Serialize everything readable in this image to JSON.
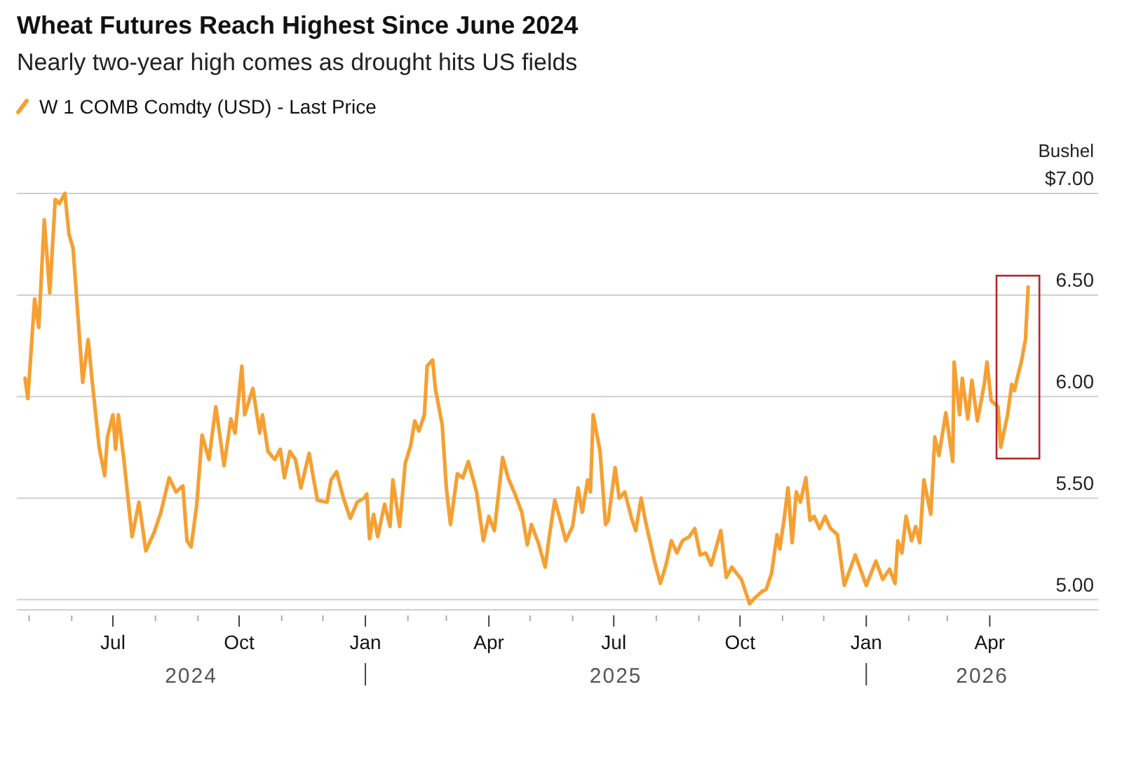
{
  "chart_data": {
    "type": "line",
    "title": "Wheat Futures Reach Highest Since June 2024",
    "subtitle": "Nearly two-year high comes as drought hits US fields",
    "ylabel": "Bushel",
    "legend": "top left",
    "grid": "y",
    "xlim": [
      "2024-04-22",
      "2026-06-19"
    ],
    "ylim": [
      4.95,
      7.0
    ],
    "yticks": [
      {
        "value": 5,
        "label": "5.00"
      },
      {
        "value": 5.5,
        "label": "5.50"
      },
      {
        "value": 6,
        "label": "6.00"
      },
      {
        "value": 6.5,
        "label": "6.50"
      },
      {
        "value": 7,
        "label": "$7.00"
      }
    ],
    "xticks": [
      {
        "value": "2024-05-01",
        "label": null
      },
      {
        "value": "2024-06-01",
        "label": null
      },
      {
        "value": "2024-07-01",
        "label": "Jul"
      },
      {
        "value": "2024-08-01",
        "label": null
      },
      {
        "value": "2024-09-01",
        "label": null
      },
      {
        "value": "2024-10-01",
        "label": "Oct"
      },
      {
        "value": "2024-11-01",
        "label": null
      },
      {
        "value": "2024-12-01",
        "label": null
      },
      {
        "value": "2025-01-01",
        "label": "Jan"
      },
      {
        "value": "2025-02-01",
        "label": null
      },
      {
        "value": "2025-03-01",
        "label": null
      },
      {
        "value": "2025-04-01",
        "label": "Apr"
      },
      {
        "value": "2025-05-01",
        "label": null
      },
      {
        "value": "2025-06-01",
        "label": null
      },
      {
        "value": "2025-07-01",
        "label": "Jul"
      },
      {
        "value": "2025-08-01",
        "label": null
      },
      {
        "value": "2025-09-01",
        "label": null
      },
      {
        "value": "2025-10-01",
        "label": "Oct"
      },
      {
        "value": "2025-11-01",
        "label": null
      },
      {
        "value": "2025-12-01",
        "label": null
      },
      {
        "value": "2026-01-01",
        "label": "Jan"
      },
      {
        "value": "2026-02-01",
        "label": null
      },
      {
        "value": "2026-03-01",
        "label": null
      },
      {
        "value": "2026-04-01",
        "label": "Apr"
      }
    ],
    "annotations": [
      "2024",
      "2025",
      "2026"
    ],
    "series": [
      {
        "name": "W 1 COMB Comdty (USD) - Last Price",
        "color": "#f5a033",
        "x": [
          "2024-04-28",
          "2024-04-30",
          "2024-05-05",
          "2024-05-08",
          "2024-05-12",
          "2024-05-16",
          "2024-05-20",
          "2024-05-23",
          "2024-05-27",
          "2024-05-30",
          "2024-06-02",
          "2024-06-09",
          "2024-06-13",
          "2024-06-16",
          "2024-06-21",
          "2024-06-25",
          "2024-06-27",
          "2024-07-01",
          "2024-07-03",
          "2024-07-05",
          "2024-07-09",
          "2024-07-15",
          "2024-07-20",
          "2024-07-25",
          "2024-07-31",
          "2024-08-05",
          "2024-08-11",
          "2024-08-16",
          "2024-08-21",
          "2024-08-24",
          "2024-08-27",
          "2024-08-31",
          "2024-09-04",
          "2024-09-09",
          "2024-09-14",
          "2024-09-20",
          "2024-09-25",
          "2024-09-28",
          "2024-10-03",
          "2024-10-05",
          "2024-10-11",
          "2024-10-16",
          "2024-10-18",
          "2024-10-22",
          "2024-10-27",
          "2024-10-31",
          "2024-11-03",
          "2024-11-07",
          "2024-11-11",
          "2024-11-15",
          "2024-11-21",
          "2024-11-27",
          "2024-12-04",
          "2024-12-07",
          "2024-12-11",
          "2024-12-16",
          "2024-12-21",
          "2024-12-26",
          "2024-12-31",
          "2025-01-02",
          "2025-01-04",
          "2025-01-07",
          "2025-01-10",
          "2025-01-15",
          "2025-01-19",
          "2025-01-21",
          "2025-01-26",
          "2025-01-30",
          "2025-02-03",
          "2025-02-06",
          "2025-02-09",
          "2025-02-13",
          "2025-02-15",
          "2025-02-19",
          "2025-02-21",
          "2025-02-26",
          "2025-03-01",
          "2025-03-04",
          "2025-03-09",
          "2025-03-13",
          "2025-03-17",
          "2025-03-23",
          "2025-03-28",
          "2025-04-01",
          "2025-04-05",
          "2025-04-11",
          "2025-04-15",
          "2025-04-20",
          "2025-04-25",
          "2025-04-29",
          "2025-05-02",
          "2025-05-07",
          "2025-05-12",
          "2025-05-15",
          "2025-05-19",
          "2025-05-24",
          "2025-05-27",
          "2025-06-01",
          "2025-06-05",
          "2025-06-08",
          "2025-06-12",
          "2025-06-14",
          "2025-06-16",
          "2025-06-21",
          "2025-06-25",
          "2025-06-27",
          "2025-07-02",
          "2025-07-05",
          "2025-07-09",
          "2025-07-14",
          "2025-07-17",
          "2025-07-21",
          "2025-07-24",
          "2025-07-31",
          "2025-08-04",
          "2025-08-08",
          "2025-08-12",
          "2025-08-16",
          "2025-08-20",
          "2025-08-25",
          "2025-08-29",
          "2025-09-02",
          "2025-09-06",
          "2025-09-10",
          "2025-09-17",
          "2025-09-21",
          "2025-09-25",
          "2025-10-02",
          "2025-10-08",
          "2025-10-12",
          "2025-10-17",
          "2025-10-20",
          "2025-10-24",
          "2025-10-28",
          "2025-10-30",
          "2025-11-02",
          "2025-11-05",
          "2025-11-08",
          "2025-11-11",
          "2025-11-14",
          "2025-11-18",
          "2025-11-21",
          "2025-11-24",
          "2025-11-28",
          "2025-12-02",
          "2025-12-06",
          "2025-12-11",
          "2025-12-16",
          "2025-12-24",
          "2026-01-01",
          "2026-01-08",
          "2026-01-13",
          "2026-01-18",
          "2026-01-22",
          "2026-01-24",
          "2026-01-27",
          "2026-01-30",
          "2026-02-03",
          "2026-02-06",
          "2026-02-09",
          "2026-02-12",
          "2026-02-17",
          "2026-02-20",
          "2026-02-23",
          "2026-02-28",
          "2026-03-05",
          "2026-03-06",
          "2026-03-10",
          "2026-03-12",
          "2026-03-16",
          "2026-03-19",
          "2026-03-23",
          "2026-03-28",
          "2026-03-30",
          "2026-04-02",
          "2026-04-07",
          "2026-04-09",
          "2026-04-14",
          "2026-04-17",
          "2026-04-19",
          "2026-04-21",
          "2026-04-24",
          "2026-04-27",
          "2026-04-29"
        ],
        "values": [
          6.09,
          5.99,
          6.48,
          6.34,
          6.87,
          6.51,
          6.97,
          6.95,
          7.0,
          6.8,
          6.73,
          6.07,
          6.28,
          6.07,
          5.75,
          5.61,
          5.8,
          5.91,
          5.74,
          5.91,
          5.69,
          5.31,
          5.48,
          5.24,
          5.33,
          5.43,
          5.6,
          5.53,
          5.56,
          5.29,
          5.26,
          5.46,
          5.81,
          5.69,
          5.95,
          5.66,
          5.89,
          5.82,
          6.15,
          5.91,
          6.04,
          5.82,
          5.91,
          5.73,
          5.69,
          5.74,
          5.6,
          5.73,
          5.69,
          5.55,
          5.72,
          5.49,
          5.48,
          5.59,
          5.63,
          5.5,
          5.4,
          5.48,
          5.5,
          5.52,
          5.3,
          5.42,
          5.31,
          5.47,
          5.36,
          5.59,
          5.36,
          5.67,
          5.76,
          5.88,
          5.83,
          5.91,
          6.15,
          6.18,
          6.04,
          5.86,
          5.55,
          5.37,
          5.62,
          5.6,
          5.68,
          5.53,
          5.29,
          5.41,
          5.34,
          5.7,
          5.6,
          5.52,
          5.43,
          5.27,
          5.37,
          5.28,
          5.16,
          5.31,
          5.49,
          5.37,
          5.29,
          5.36,
          5.55,
          5.43,
          5.59,
          5.53,
          5.91,
          5.73,
          5.37,
          5.39,
          5.65,
          5.5,
          5.53,
          5.4,
          5.34,
          5.5,
          5.39,
          5.18,
          5.08,
          5.17,
          5.29,
          5.23,
          5.29,
          5.31,
          5.35,
          5.22,
          5.23,
          5.17,
          5.34,
          5.11,
          5.16,
          5.1,
          4.98,
          5.01,
          5.04,
          5.05,
          5.13,
          5.32,
          5.25,
          5.39,
          5.55,
          5.28,
          5.53,
          5.48,
          5.6,
          5.39,
          5.41,
          5.35,
          5.41,
          5.35,
          5.32,
          5.07,
          5.22,
          5.07,
          5.19,
          5.1,
          5.15,
          5.08,
          5.29,
          5.23,
          5.41,
          5.29,
          5.36,
          5.28,
          5.59,
          5.42,
          5.8,
          5.71,
          5.92,
          5.68,
          6.17,
          5.91,
          6.09,
          5.89,
          6.08,
          5.88,
          6.06,
          6.17,
          5.98,
          5.95,
          5.75,
          5.91,
          6.06,
          6.03,
          6.09,
          6.17,
          6.28,
          6.54
        ]
      }
    ]
  }
}
